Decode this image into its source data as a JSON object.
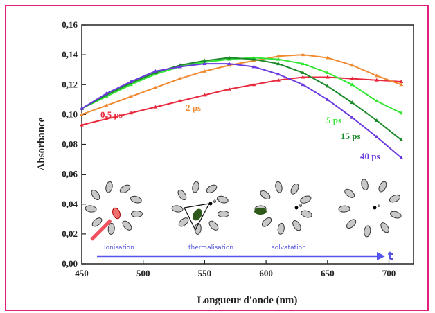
{
  "chart_data": {
    "type": "line",
    "x_label": "Longueur d'onde (nm)",
    "y_label": "Absorbance",
    "xlim": [
      450,
      720
    ],
    "xticks": [
      450,
      500,
      550,
      600,
      650,
      700
    ],
    "ylim": [
      0,
      0.16
    ],
    "yticks": [
      {
        "value": 0,
        "label": "0,00"
      },
      {
        "value": 0.02,
        "label": "0,02"
      },
      {
        "value": 0.04,
        "label": "0,04"
      },
      {
        "value": 0.06,
        "label": "0,06"
      },
      {
        "value": 0.08,
        "label": "0,08"
      },
      {
        "value": 0.1,
        "label": "0,10"
      },
      {
        "value": 0.12,
        "label": "0,12"
      },
      {
        "value": 0.14,
        "label": "0,14"
      },
      {
        "value": 0.16,
        "label": "0,16"
      }
    ],
    "x": [
      450,
      470,
      490,
      510,
      530,
      550,
      570,
      590,
      610,
      630,
      650,
      670,
      690,
      710
    ],
    "series": [
      {
        "name": "0,5 ps",
        "color": "#e8283c",
        "values": [
          0.093,
          0.097,
          0.101,
          0.105,
          0.109,
          0.113,
          0.117,
          0.12,
          0.123,
          0.125,
          0.125,
          0.124,
          0.123,
          0.122
        ]
      },
      {
        "name": "2 ps",
        "color": "#f08a30",
        "values": [
          0.1,
          0.106,
          0.112,
          0.118,
          0.124,
          0.129,
          0.133,
          0.136,
          0.139,
          0.14,
          0.138,
          0.133,
          0.126,
          0.12
        ]
      },
      {
        "name": "5 ps",
        "color": "#33e633",
        "values": [
          0.104,
          0.112,
          0.12,
          0.127,
          0.132,
          0.135,
          0.137,
          0.138,
          0.137,
          0.134,
          0.128,
          0.12,
          0.109,
          0.101
        ]
      },
      {
        "name": "15 ps",
        "color": "#1a8a2a",
        "values": [
          0.104,
          0.113,
          0.121,
          0.128,
          0.133,
          0.136,
          0.138,
          0.137,
          0.134,
          0.128,
          0.119,
          0.108,
          0.096,
          0.083
        ]
      },
      {
        "name": "40 ps",
        "color": "#6a3ae0",
        "values": [
          0.104,
          0.114,
          0.122,
          0.129,
          0.132,
          0.134,
          0.134,
          0.132,
          0.127,
          0.12,
          0.11,
          0.098,
          0.085,
          0.071
        ]
      }
    ],
    "annotations": [
      "Ionisation",
      "thermalisation",
      "solvatation",
      "t"
    ],
    "electron_label": "e⁻"
  }
}
